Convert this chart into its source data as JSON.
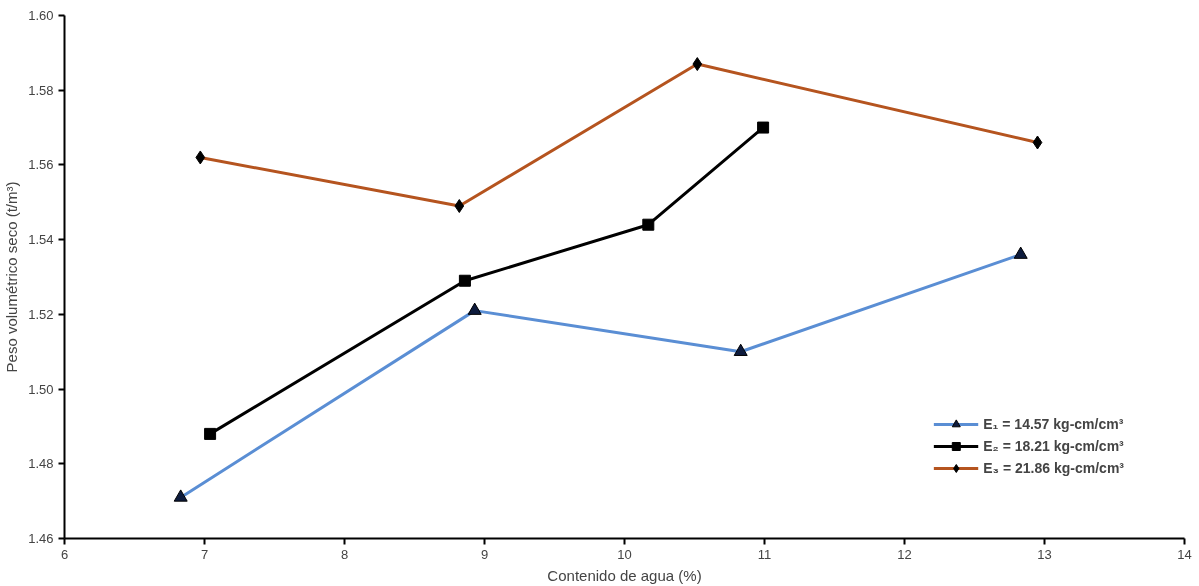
{
  "chart_data": {
    "type": "line",
    "xlabel": "Contenido de agua (%)",
    "ylabel": "Peso volumétrico seco (t/m³)",
    "xlim": [
      6,
      14
    ],
    "xticks": [
      6,
      7,
      8,
      9,
      10,
      11,
      12,
      13,
      14
    ],
    "ylim": [
      1.46,
      1.6
    ],
    "yticks": [
      1.46,
      1.48,
      {
        "value": 1.5,
        "label": "1.50"
      },
      1.52,
      1.54,
      1.56,
      1.58,
      {
        "value": 1.6,
        "label": "1.60"
      }
    ],
    "grid": false,
    "legend": "bottom right",
    "series": [
      {
        "name": "E₁ = 14.57 kg-cm/cm³",
        "color": "#5a8ed4",
        "marker": "triangle",
        "x": [
          6.83,
          8.93,
          10.83,
          12.83
        ],
        "values": [
          1.471,
          1.521,
          1.51,
          1.536
        ]
      },
      {
        "name": "E₂ = 18.21 kg-cm/cm³",
        "color": "#000000",
        "marker": "square",
        "x": [
          7.04,
          8.86,
          10.17,
          10.99
        ],
        "values": [
          1.488,
          1.529,
          1.544,
          1.57
        ]
      },
      {
        "name": "E₃ = 21.86 kg-cm/cm³",
        "color": "#b5541f",
        "marker": "diamond",
        "x": [
          6.97,
          8.82,
          10.52,
          12.95
        ],
        "values": [
          1.562,
          1.549,
          1.587,
          1.566
        ]
      }
    ]
  }
}
